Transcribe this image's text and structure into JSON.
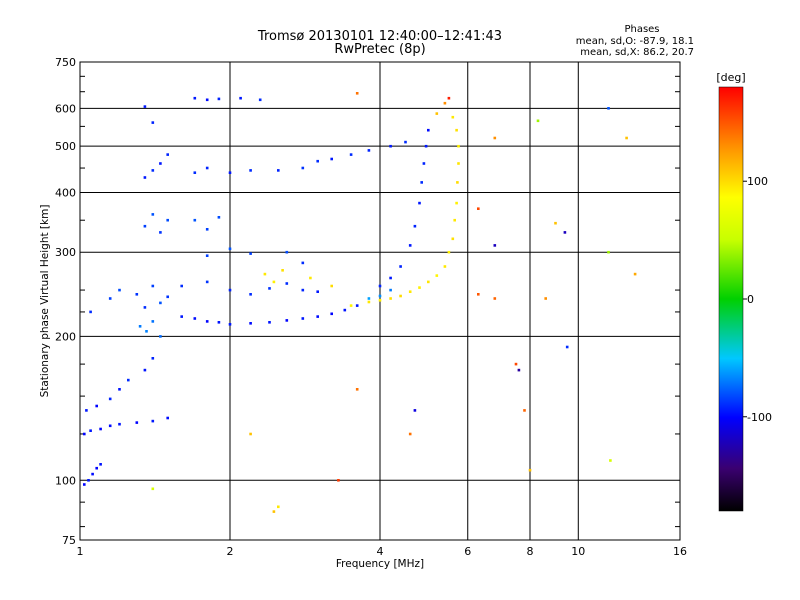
{
  "chart_data": {
    "type": "scatter",
    "title": "Tromsø 20130101 12:40:00–12:41:43",
    "subtitle": "RwPretec (8p)",
    "xlabel": "Frequency [MHz]",
    "ylabel": "Stationary phase Virtual Height [km]",
    "x_scale": "log",
    "y_scale": "log",
    "xlim": [
      1,
      16
    ],
    "ylim": [
      75,
      750
    ],
    "x_ticks": [
      1,
      2,
      4,
      6,
      8,
      10,
      16
    ],
    "x_tick_labels": [
      "1",
      "2",
      "4",
      "6",
      "8",
      "10",
      "16"
    ],
    "y_ticks": [
      75,
      100,
      200,
      300,
      400,
      500,
      600,
      750
    ],
    "y_tick_labels": [
      "75",
      "100",
      "200",
      "300",
      "400",
      "500",
      "600",
      "750"
    ],
    "grid": true,
    "legend": {
      "header": "Phases",
      "line1": "mean, sd,O: -87.9, 18.1",
      "line2": "mean, sd,X: 86.2, 20.7",
      "placement": "top-right"
    },
    "colorbar": {
      "label": "[deg]",
      "range": [
        -180,
        180
      ],
      "ticks": [
        100,
        0,
        -100
      ],
      "tick_labels": [
        "100",
        "0",
        "-100"
      ],
      "colormap": "rainbow"
    },
    "series": [
      {
        "points": [
          [
            1.02,
            98,
            -100
          ],
          [
            1.04,
            100,
            -95
          ],
          [
            1.06,
            103,
            -98
          ],
          [
            1.08,
            106,
            -100
          ],
          [
            1.1,
            108,
            -96
          ],
          [
            1.02,
            125,
            -100
          ],
          [
            1.05,
            127,
            -95
          ],
          [
            1.1,
            128,
            -100
          ],
          [
            1.15,
            130,
            -98
          ],
          [
            1.2,
            131,
            -96
          ],
          [
            1.3,
            132,
            -100
          ],
          [
            1.4,
            133,
            -95
          ],
          [
            1.5,
            135,
            -98
          ],
          [
            1.03,
            140,
            -95
          ],
          [
            1.08,
            143,
            -100
          ],
          [
            1.15,
            148,
            -92
          ],
          [
            1.2,
            155,
            -96
          ],
          [
            1.25,
            162,
            -90
          ],
          [
            1.35,
            170,
            -96
          ],
          [
            1.4,
            180,
            -92
          ],
          [
            1.05,
            225,
            -90
          ],
          [
            1.15,
            240,
            -85
          ],
          [
            1.2,
            250,
            -82
          ],
          [
            1.3,
            245,
            -88
          ],
          [
            1.35,
            230,
            -90
          ],
          [
            1.4,
            255,
            -85
          ],
          [
            1.45,
            235,
            -80
          ],
          [
            1.5,
            242,
            -88
          ],
          [
            1.32,
            210,
            -70
          ],
          [
            1.36,
            205,
            -68
          ],
          [
            1.4,
            215,
            -72
          ],
          [
            1.45,
            200,
            -74
          ],
          [
            1.6,
            220,
            -95
          ],
          [
            1.7,
            218,
            -98
          ],
          [
            1.8,
            215,
            -100
          ],
          [
            1.9,
            214,
            -96
          ],
          [
            2.0,
            212,
            -95
          ],
          [
            2.2,
            213,
            -98
          ],
          [
            2.4,
            214,
            -96
          ],
          [
            2.6,
            216,
            -100
          ],
          [
            2.8,
            218,
            -95
          ],
          [
            3.0,
            220,
            -98
          ],
          [
            3.2,
            223,
            -100
          ],
          [
            3.4,
            227,
            -96
          ],
          [
            3.6,
            232,
            -95
          ],
          [
            1.6,
            255,
            -90
          ],
          [
            1.8,
            260,
            -88
          ],
          [
            2.0,
            250,
            -92
          ],
          [
            2.2,
            245,
            -90
          ],
          [
            2.4,
            252,
            -88
          ],
          [
            2.6,
            258,
            -90
          ],
          [
            2.8,
            250,
            -92
          ],
          [
            3.0,
            248,
            -95
          ],
          [
            1.8,
            295,
            -85
          ],
          [
            2.0,
            305,
            -80
          ],
          [
            2.2,
            298,
            -85
          ],
          [
            2.6,
            300,
            -82
          ],
          [
            2.8,
            285,
            -90
          ],
          [
            1.35,
            340,
            -85
          ],
          [
            1.4,
            360,
            -80
          ],
          [
            1.45,
            330,
            -88
          ],
          [
            1.5,
            350,
            -82
          ],
          [
            1.7,
            350,
            -80
          ],
          [
            1.8,
            335,
            -85
          ],
          [
            1.9,
            355,
            -82
          ],
          [
            1.35,
            430,
            -95
          ],
          [
            1.4,
            445,
            -90
          ],
          [
            1.45,
            460,
            -95
          ],
          [
            1.5,
            480,
            -92
          ],
          [
            1.7,
            440,
            -90
          ],
          [
            1.8,
            450,
            -92
          ],
          [
            2.0,
            440,
            -95
          ],
          [
            2.2,
            445,
            -90
          ],
          [
            2.5,
            445,
            -92
          ],
          [
            2.8,
            450,
            -88
          ],
          [
            3.0,
            465,
            -90
          ],
          [
            3.2,
            470,
            -95
          ],
          [
            3.5,
            480,
            -90
          ],
          [
            3.8,
            490,
            -92
          ],
          [
            4.2,
            500,
            -95
          ],
          [
            4.5,
            510,
            -90
          ],
          [
            1.7,
            630,
            -95
          ],
          [
            1.8,
            625,
            -98
          ],
          [
            1.9,
            628,
            -92
          ],
          [
            2.1,
            630,
            -95
          ],
          [
            2.3,
            625,
            -90
          ],
          [
            1.35,
            605,
            -95
          ],
          [
            1.4,
            560,
            -92
          ],
          [
            4.0,
            255,
            -92
          ],
          [
            4.2,
            265,
            -95
          ],
          [
            4.4,
            280,
            -92
          ],
          [
            4.6,
            310,
            -95
          ],
          [
            4.7,
            340,
            -92
          ],
          [
            4.8,
            380,
            -95
          ],
          [
            4.85,
            420,
            -90
          ],
          [
            4.9,
            460,
            -92
          ],
          [
            4.95,
            500,
            -95
          ],
          [
            5.0,
            540,
            -98
          ],
          [
            3.8,
            240,
            -60
          ],
          [
            4.0,
            243,
            -65
          ],
          [
            4.2,
            250,
            -70
          ],
          [
            3.5,
            232,
            90
          ],
          [
            3.8,
            236,
            95
          ],
          [
            4.0,
            238,
            92
          ],
          [
            4.2,
            240,
            98
          ],
          [
            4.4,
            243,
            100
          ],
          [
            4.6,
            248,
            95
          ],
          [
            4.8,
            253,
            92
          ],
          [
            5.0,
            260,
            96
          ],
          [
            5.2,
            268,
            90
          ],
          [
            5.4,
            280,
            95
          ],
          [
            5.5,
            300,
            92
          ],
          [
            5.6,
            320,
            98
          ],
          [
            5.65,
            350,
            95
          ],
          [
            5.7,
            380,
            92
          ],
          [
            5.72,
            420,
            100
          ],
          [
            5.75,
            460,
            96
          ],
          [
            5.75,
            500,
            92
          ],
          [
            5.7,
            540,
            98
          ],
          [
            5.6,
            575,
            95
          ],
          [
            2.35,
            270,
            95
          ],
          [
            2.45,
            260,
            92
          ],
          [
            2.55,
            275,
            98
          ],
          [
            2.9,
            265,
            95
          ],
          [
            3.2,
            255,
            100
          ],
          [
            5.5,
            630,
            170
          ],
          [
            5.4,
            615,
            130
          ],
          [
            5.2,
            585,
            110
          ],
          [
            3.6,
            645,
            140
          ],
          [
            6.3,
            370,
            155
          ],
          [
            6.3,
            245,
            150
          ],
          [
            6.8,
            240,
            145
          ],
          [
            6.8,
            310,
            -120
          ],
          [
            7.5,
            175,
            155
          ],
          [
            7.6,
            170,
            -130
          ],
          [
            7.8,
            140,
            145
          ],
          [
            8.0,
            105,
            110
          ],
          [
            8.3,
            565,
            40
          ],
          [
            8.6,
            240,
            130
          ],
          [
            9.0,
            345,
            110
          ],
          [
            9.4,
            330,
            -120
          ],
          [
            9.5,
            190,
            -90
          ],
          [
            11.5,
            600,
            -80
          ],
          [
            11.5,
            300,
            40
          ],
          [
            11.6,
            110,
            60
          ],
          [
            12.5,
            520,
            110
          ],
          [
            13.0,
            270,
            120
          ],
          [
            2.5,
            88,
            95
          ],
          [
            2.45,
            86,
            110
          ],
          [
            1.4,
            96,
            60
          ],
          [
            2.2,
            125,
            110
          ],
          [
            3.3,
            100,
            160
          ],
          [
            3.6,
            155,
            140
          ],
          [
            4.6,
            125,
            140
          ],
          [
            4.7,
            140,
            -110
          ],
          [
            6.8,
            520,
            130
          ]
        ]
      }
    ]
  }
}
